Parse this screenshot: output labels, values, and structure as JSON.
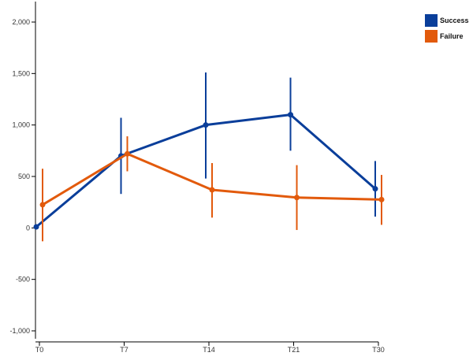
{
  "chart_data": {
    "type": "line",
    "categories": [
      "T0",
      "T7",
      "T14",
      "T21",
      "T30"
    ],
    "ylim": [
      -1000,
      2000
    ],
    "yticks": [
      -1000,
      -500,
      0,
      500,
      1000,
      1500,
      2000
    ],
    "ytick_labels": [
      "-1,000",
      "-500",
      "0",
      "500",
      "1,000",
      "1,500",
      "2,000"
    ],
    "grid": false,
    "legend_position": "top-right",
    "error_bars": true,
    "series": [
      {
        "name": "Success",
        "color": "#0a3e9a",
        "values": [
          10,
          700,
          1000,
          1100,
          380
        ],
        "error_low": [
          10,
          330,
          480,
          750,
          110
        ],
        "error_high": [
          10,
          1070,
          1510,
          1460,
          650
        ]
      },
      {
        "name": "Failure",
        "color": "#e25a0c",
        "values": [
          225,
          720,
          370,
          295,
          275
        ],
        "error_low": [
          -130,
          550,
          100,
          -20,
          30
        ],
        "error_high": [
          575,
          890,
          630,
          610,
          515
        ]
      }
    ]
  }
}
